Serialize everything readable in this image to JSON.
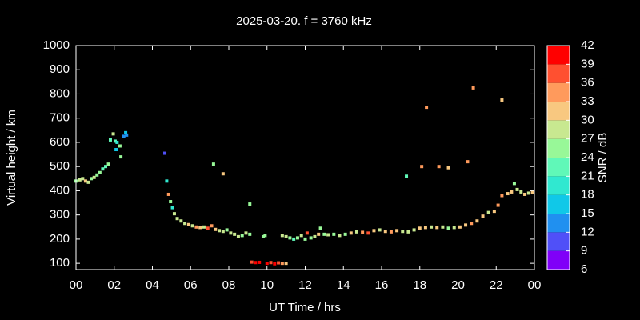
{
  "chart_data": {
    "type": "scatter",
    "title": "2025-03-20. f = 3760 kHz",
    "x_label": "UT Time / hrs",
    "y_label": "Virtual height / km",
    "colorbar_label": "SNR / dB",
    "xlim": [
      0,
      24
    ],
    "xticks": [
      {
        "value": 0,
        "label": "00"
      },
      {
        "value": 2,
        "label": "02"
      },
      {
        "value": 4,
        "label": "04"
      },
      {
        "value": 6,
        "label": "06"
      },
      {
        "value": 8,
        "label": "08"
      },
      10,
      12,
      14,
      16,
      18,
      20,
      22,
      {
        "value": 24,
        "label": "00"
      }
    ],
    "ylim": [
      74,
      1000
    ],
    "yticks": [
      100,
      200,
      300,
      400,
      500,
      600,
      700,
      800,
      900,
      1000
    ],
    "clim": [
      6,
      42
    ],
    "cticks": [
      6,
      9,
      12,
      15,
      18,
      21,
      24,
      27,
      30,
      33,
      36,
      39,
      42
    ],
    "colormap": [
      "#8000f8",
      "#5050f8",
      "#2090f0",
      "#10c8e8",
      "#30e8d0",
      "#60f8b8",
      "#98f898",
      "#c8e890",
      "#f8c880",
      "#ff9a5c",
      "#ff5030",
      "#ff0000"
    ],
    "x": [
      0.0,
      0.2,
      0.35,
      0.5,
      0.65,
      0.8,
      0.95,
      1.1,
      1.25,
      1.4,
      1.55,
      1.7,
      1.8,
      1.95,
      2.05,
      2.15,
      2.1,
      2.3,
      2.35,
      2.5,
      2.6,
      2.65,
      4.65,
      4.75,
      4.85,
      4.95,
      5.05,
      5.15,
      5.3,
      5.5,
      5.7,
      5.9,
      6.1,
      6.3,
      6.5,
      6.7,
      6.9,
      7.1,
      7.3,
      7.5,
      7.7,
      7.9,
      8.1,
      8.3,
      8.5,
      8.7,
      8.9,
      9.1,
      7.2,
      7.7,
      9.1,
      9.2,
      9.4,
      9.6,
      9.8,
      9.9,
      10.0,
      10.2,
      10.4,
      10.6,
      10.8,
      11.0,
      10.8,
      11.0,
      11.2,
      11.4,
      11.6,
      11.8,
      12.0,
      12.1,
      12.3,
      12.5,
      12.7,
      12.8,
      13.0,
      13.2,
      13.5,
      13.8,
      14.1,
      14.4,
      14.7,
      15.0,
      15.3,
      15.6,
      15.9,
      16.2,
      16.5,
      16.8,
      17.1,
      17.4,
      17.7,
      18.0,
      18.3,
      18.6,
      18.9,
      19.2,
      19.5,
      19.8,
      20.1,
      20.4,
      20.7,
      21.0,
      21.3,
      21.6,
      21.9,
      22.1,
      22.3,
      22.6,
      22.8,
      22.95,
      23.1,
      23.3,
      23.5,
      23.7,
      23.9,
      17.3,
      18.1,
      18.35,
      19.0,
      19.5,
      20.5,
      20.8,
      22.3
    ],
    "values": [
      440,
      445,
      450,
      440,
      435,
      450,
      455,
      465,
      475,
      490,
      500,
      510,
      610,
      635,
      605,
      600,
      570,
      585,
      540,
      625,
      640,
      630,
      555,
      440,
      385,
      355,
      330,
      305,
      285,
      275,
      265,
      260,
      255,
      250,
      248,
      250,
      245,
      255,
      240,
      235,
      232,
      238,
      225,
      220,
      210,
      215,
      225,
      220,
      510,
      470,
      345,
      105,
      103,
      104,
      210,
      215,
      100,
      103,
      98,
      102,
      100,
      100,
      215,
      210,
      205,
      200,
      205,
      215,
      200,
      225,
      205,
      210,
      220,
      245,
      220,
      218,
      220,
      215,
      220,
      225,
      230,
      228,
      225,
      235,
      238,
      232,
      230,
      235,
      232,
      230,
      238,
      245,
      248,
      250,
      248,
      250,
      245,
      248,
      250,
      258,
      265,
      275,
      295,
      310,
      315,
      340,
      380,
      388,
      395,
      430,
      405,
      395,
      385,
      390,
      392,
      460,
      500,
      745,
      500,
      495,
      520,
      825,
      775
    ],
    "snr": [
      24,
      27,
      27,
      30,
      27,
      24,
      27,
      24,
      24,
      21,
      21,
      24,
      21,
      27,
      21,
      18,
      15,
      24,
      24,
      12,
      15,
      12,
      9,
      18,
      33,
      24,
      18,
      27,
      27,
      27,
      27,
      30,
      27,
      33,
      30,
      27,
      36,
      33,
      30,
      27,
      27,
      24,
      27,
      27,
      27,
      24,
      27,
      24,
      24,
      30,
      24,
      36,
      39,
      39,
      24,
      24,
      39,
      36,
      39,
      36,
      33,
      30,
      27,
      27,
      24,
      21,
      24,
      27,
      24,
      36,
      24,
      27,
      30,
      24,
      24,
      27,
      24,
      27,
      24,
      30,
      27,
      33,
      36,
      30,
      27,
      30,
      33,
      30,
      27,
      27,
      27,
      30,
      30,
      27,
      30,
      27,
      24,
      27,
      30,
      30,
      33,
      30,
      30,
      27,
      30,
      33,
      33,
      30,
      30,
      24,
      27,
      27,
      30,
      27,
      30,
      21,
      33,
      33,
      33,
      30,
      33,
      33,
      30
    ]
  }
}
